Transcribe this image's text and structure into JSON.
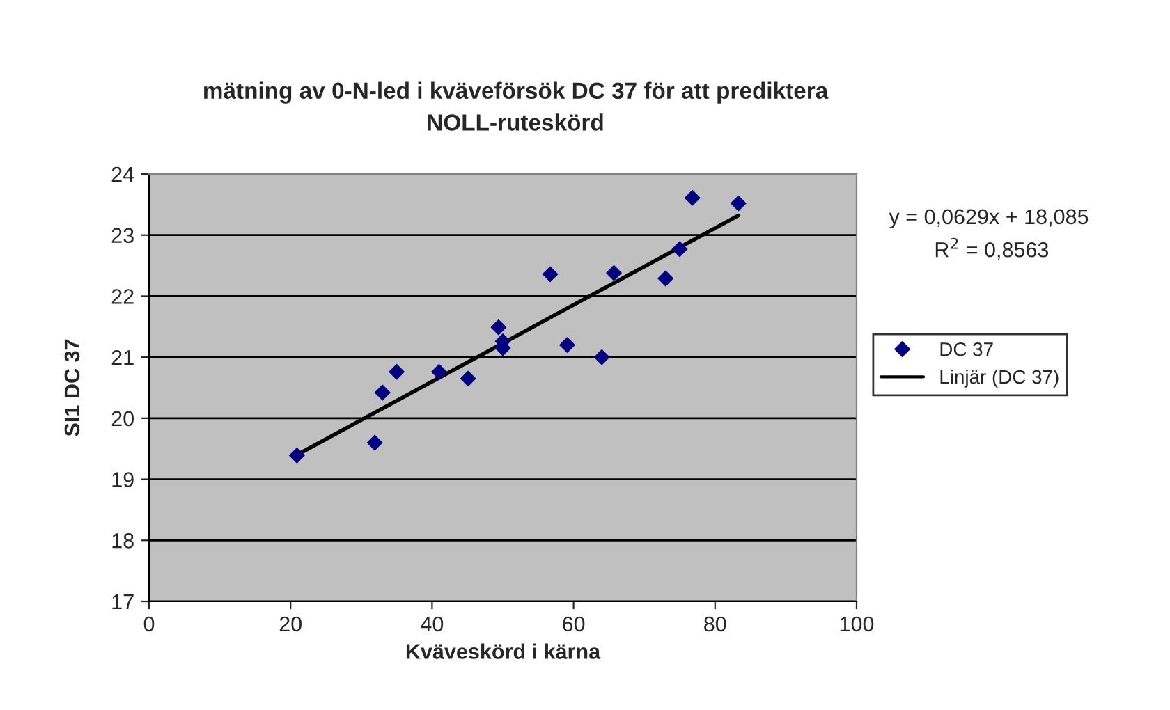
{
  "chart_data": {
    "type": "scatter",
    "title": "mätning av 0-N-led i kväveförsök DC 37 för att prediktera\nNOLL-ruteskörd",
    "xlabel": "Kväveskörd i kärna",
    "ylabel": "SI1 DC 37",
    "series": [
      {
        "name": "DC 37",
        "color": "#000080",
        "marker": "diamond",
        "x": [
          20.9,
          31.9,
          33.0,
          35.0,
          41.0,
          45.1,
          49.4,
          50.0,
          50.0,
          56.7,
          59.1,
          64.0,
          65.7,
          73.0,
          75.0,
          76.8,
          83.3
        ],
        "values": [
          19.39,
          19.6,
          20.42,
          20.76,
          20.76,
          20.65,
          21.49,
          21.26,
          21.15,
          22.36,
          21.2,
          21.0,
          22.38,
          22.29,
          22.77,
          23.61,
          23.52
        ]
      },
      {
        "name": "Linjär (DC 37)",
        "type": "line",
        "color": "#000000",
        "line_style": "solid",
        "marker": "none",
        "x": [
          20.9,
          83.3
        ],
        "values": [
          19.4,
          23.32
        ]
      }
    ],
    "annotations": [
      "y = 0,0629x + 18,085",
      "R$^{2}$ = 0,8563"
    ],
    "xlim": [
      0,
      100
    ],
    "xticks": [
      0,
      20,
      40,
      60,
      80,
      100
    ],
    "ylim": [
      17,
      24
    ],
    "yticks": [
      17,
      18,
      19,
      20,
      21,
      22,
      23,
      24
    ],
    "grid": "y",
    "legend": "right"
  }
}
